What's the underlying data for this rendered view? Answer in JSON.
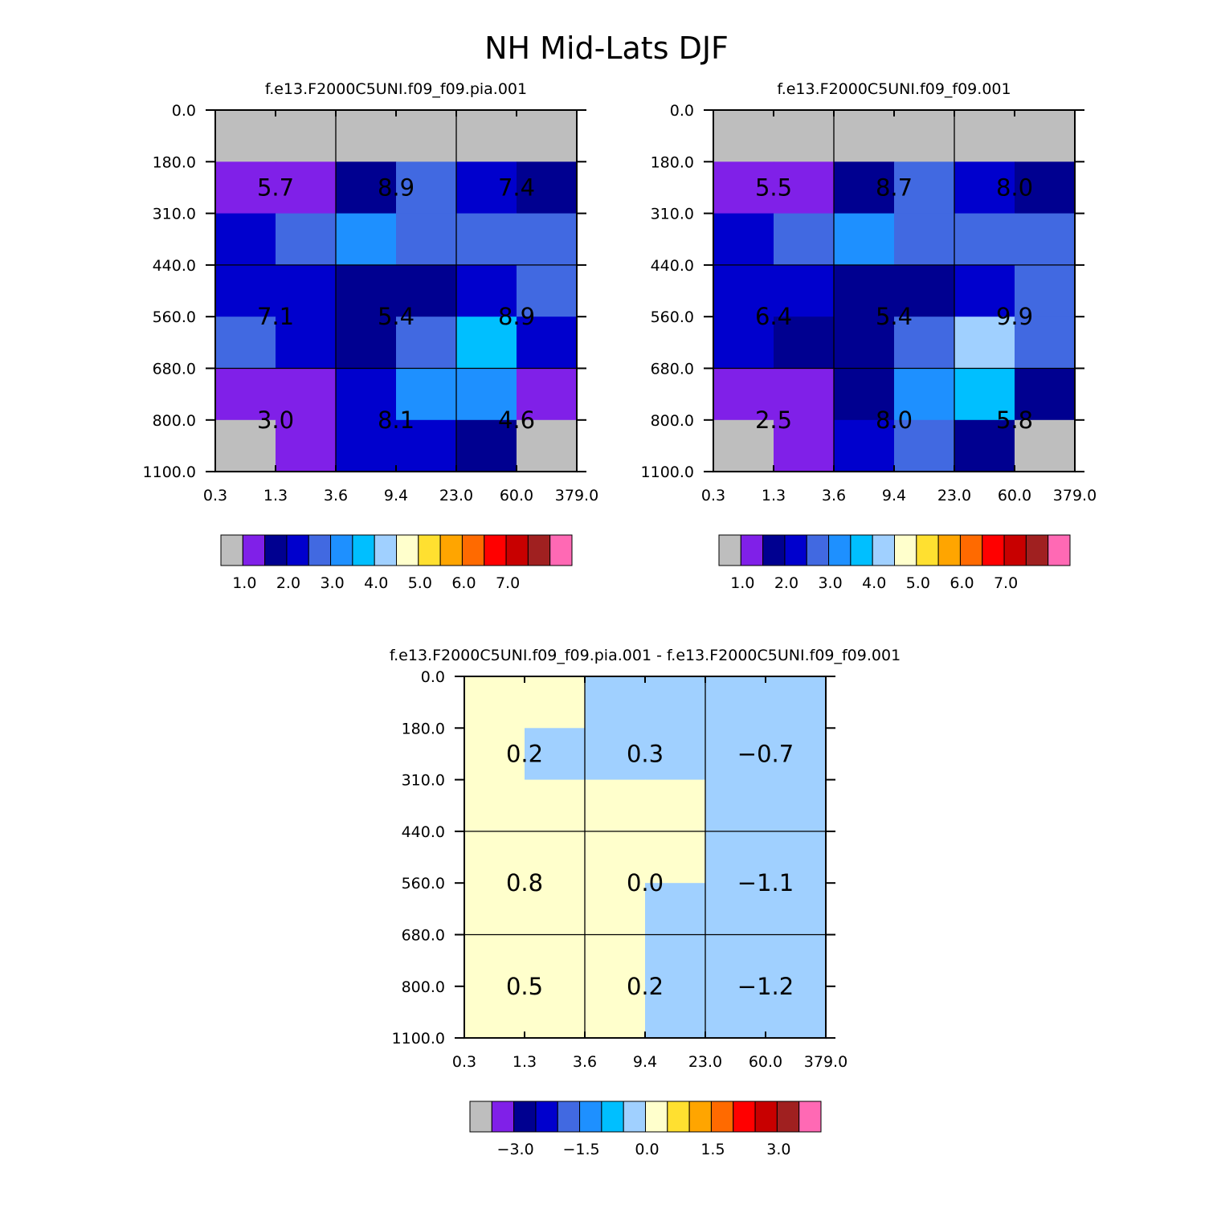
{
  "title": "NH Mid-Lats DJF",
  "colors": {
    "palette_top": [
      "#bebebe",
      "#8020e8",
      "#000090",
      "#0000cd",
      "#4169e1",
      "#1e90ff",
      "#00bfff",
      "#a0d0ff",
      "#ffffcc",
      "#ffe030",
      "#ffa500",
      "#ff6a00",
      "#ff0000",
      "#c80000",
      "#a02020",
      "#ff69b4"
    ],
    "palette_diff": [
      "#bebebe",
      "#8020e8",
      "#000090",
      "#0000cd",
      "#4169e1",
      "#1e90ff",
      "#00bfff",
      "#a0d0ff",
      "#ffffcc",
      "#ffe030",
      "#ffa500",
      "#ff6a00",
      "#ff0000",
      "#c80000",
      "#a02020",
      "#ff69b4"
    ]
  },
  "chart_data": [
    {
      "type": "heatmap",
      "title": "f.e13.F2000C5UNI.f09_f09.pia.001",
      "x_ticks": [
        "0.3",
        "1.3",
        "3.6",
        "9.4",
        "23.0",
        "60.0",
        "379.0"
      ],
      "y_ticks": [
        "0.0",
        "180.0",
        "310.0",
        "440.0",
        "560.0",
        "680.0",
        "800.0",
        "1100.0"
      ],
      "cells": [
        [
          0,
          0,
          0,
          0,
          0,
          0
        ],
        [
          1,
          1,
          2,
          4,
          3,
          2
        ],
        [
          3,
          4,
          5,
          4,
          4,
          4
        ],
        [
          3,
          3,
          2,
          2,
          3,
          4
        ],
        [
          4,
          3,
          2,
          4,
          6,
          3
        ],
        [
          1,
          1,
          3,
          5,
          5,
          1
        ],
        [
          0,
          1,
          3,
          3,
          2,
          0
        ]
      ],
      "values": [
        [
          "5.7",
          "8.9",
          "7.4"
        ],
        [
          "7.1",
          "5.4",
          "8.9"
        ],
        [
          "3.0",
          "8.1",
          "4.6"
        ]
      ],
      "colorbar_labels": [
        "1.0",
        "2.0",
        "3.0",
        "4.0",
        "5.0",
        "6.0",
        "7.0"
      ]
    },
    {
      "type": "heatmap",
      "title": "f.e13.F2000C5UNI.f09_f09.001",
      "x_ticks": [
        "0.3",
        "1.3",
        "3.6",
        "9.4",
        "23.0",
        "60.0",
        "379.0"
      ],
      "y_ticks": [
        "0.0",
        "180.0",
        "310.0",
        "440.0",
        "560.0",
        "680.0",
        "800.0",
        "1100.0"
      ],
      "cells": [
        [
          0,
          0,
          0,
          0,
          0,
          0
        ],
        [
          1,
          1,
          2,
          4,
          3,
          2
        ],
        [
          3,
          4,
          5,
          4,
          4,
          4
        ],
        [
          3,
          3,
          2,
          2,
          3,
          4
        ],
        [
          3,
          2,
          2,
          4,
          7,
          4
        ],
        [
          1,
          1,
          2,
          5,
          6,
          2
        ],
        [
          0,
          1,
          3,
          4,
          2,
          0
        ]
      ],
      "values": [
        [
          "5.5",
          "8.7",
          "8.0"
        ],
        [
          "6.4",
          "5.4",
          "9.9"
        ],
        [
          "2.5",
          "8.0",
          "5.8"
        ]
      ],
      "colorbar_labels": [
        "1.0",
        "2.0",
        "3.0",
        "4.0",
        "5.0",
        "6.0",
        "7.0"
      ]
    },
    {
      "type": "heatmap",
      "title": "f.e13.F2000C5UNI.f09_f09.pia.001 - f.e13.F2000C5UNI.f09_f09.001",
      "x_ticks": [
        "0.3",
        "1.3",
        "3.6",
        "9.4",
        "23.0",
        "60.0",
        "379.0"
      ],
      "y_ticks": [
        "0.0",
        "180.0",
        "310.0",
        "440.0",
        "560.0",
        "680.0",
        "800.0",
        "1100.0"
      ],
      "cells": [
        [
          8,
          8,
          7,
          7,
          7,
          7
        ],
        [
          8,
          7,
          7,
          7,
          7,
          7
        ],
        [
          8,
          8,
          8,
          8,
          7,
          7
        ],
        [
          8,
          8,
          8,
          8,
          7,
          7
        ],
        [
          8,
          8,
          8,
          7,
          7,
          7
        ],
        [
          8,
          8,
          8,
          7,
          7,
          7
        ],
        [
          8,
          8,
          8,
          7,
          7,
          7
        ]
      ],
      "values": [
        [
          "0.2",
          "0.3",
          "-0.7"
        ],
        [
          "0.8",
          "0.0",
          "-1.1"
        ],
        [
          "0.5",
          "0.2",
          "-1.2"
        ]
      ],
      "colorbar_labels": [
        "-3.0",
        "-1.5",
        "0.0",
        "1.5",
        "3.0"
      ]
    }
  ]
}
